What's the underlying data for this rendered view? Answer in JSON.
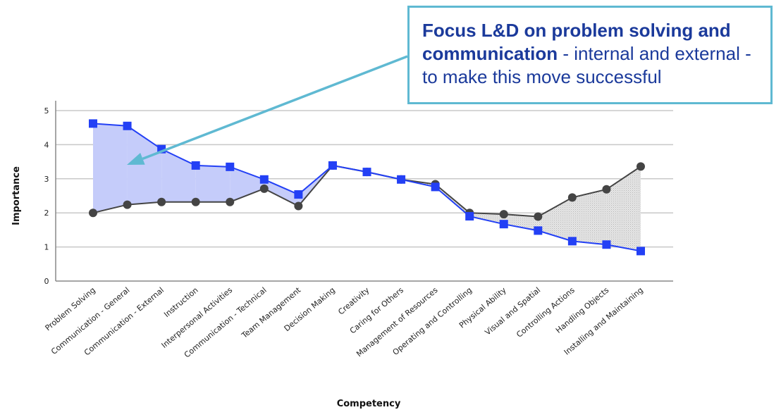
{
  "chart_data": {
    "type": "line",
    "title": "",
    "xlabel": "Competency",
    "ylabel": "Importance",
    "ylim": [
      0,
      5
    ],
    "yticks": [
      0,
      1,
      2,
      3,
      4,
      5
    ],
    "grid": true,
    "categories": [
      "Problem Solving",
      "Communication - General",
      "Communication - External",
      "Instruction",
      "Interpersonal Activities",
      "Communication - Technical",
      "Team Management",
      "Decision Making",
      "Creativity",
      "Caring for Others",
      "Management of Resources",
      "Operating and Controlling",
      "Physical Ability",
      "Visual and Spatial",
      "Controlling Actions",
      "Handling Objects",
      "Installing and Maintaining"
    ],
    "series": [
      {
        "name": "Blue series (square markers)",
        "color": "#2340f5",
        "marker": "square",
        "values": [
          4.62,
          4.55,
          3.87,
          3.39,
          3.35,
          2.98,
          2.54,
          3.39,
          3.2,
          2.98,
          2.76,
          1.9,
          1.67,
          1.48,
          1.17,
          1.07,
          0.88
        ]
      },
      {
        "name": "Gray series (circle markers)",
        "color": "#444444",
        "marker": "circle",
        "values": [
          2.0,
          2.24,
          2.32,
          2.32,
          2.32,
          2.71,
          2.2,
          3.39,
          3.2,
          2.98,
          2.84,
          2.0,
          1.96,
          1.89,
          2.45,
          2.69,
          3.36
        ]
      }
    ],
    "gap_fill": {
      "blue_above_color": "#c5ccfa",
      "gray_above_color": "#d8d8d8"
    },
    "annotation": {
      "bold_text": "Focus L&D on problem solving and communication",
      "text": " - internal and external - to make this move successful",
      "border_color": "#5fb9d2",
      "text_color": "#1b3a9b",
      "arrow_color": "#5fb9d2"
    }
  }
}
